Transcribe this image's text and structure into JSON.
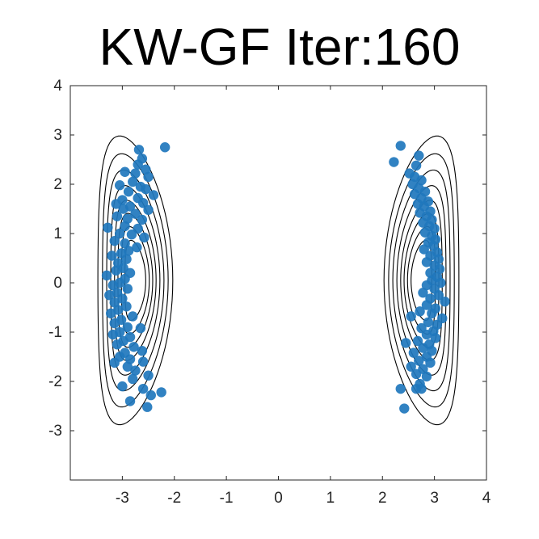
{
  "chart_data": {
    "type": "scatter",
    "title": "KW-GF Iter:160",
    "xlabel": "",
    "ylabel": "",
    "xlim": [
      -4,
      4
    ],
    "ylim": [
      -4,
      4
    ],
    "xticks": [
      -3,
      -2,
      -1,
      0,
      1,
      2,
      3,
      4
    ],
    "yticks": [
      -3,
      -2,
      -1,
      0,
      1,
      2,
      3,
      4
    ],
    "grid": false,
    "marker_color": "#1f77bd",
    "contour_color": "#000000",
    "contours": {
      "levels": [
        0.35,
        0.5,
        0.62,
        0.72,
        0.8,
        0.86,
        0.91,
        0.95
      ],
      "clusters": [
        {
          "cx": -2.75,
          "cy": 0.05,
          "ry": 2.93,
          "rx_outer": 0.72,
          "bend": -0.3
        },
        {
          "cx": 2.75,
          "cy": 0.05,
          "ry": 2.93,
          "rx_outer": 0.72,
          "bend": 0.3
        }
      ]
    },
    "series": [
      {
        "points": [
          [
            -2.18,
            2.75
          ],
          [
            -2.68,
            2.7
          ],
          [
            -2.62,
            2.52
          ],
          [
            -2.7,
            2.4
          ],
          [
            -2.55,
            2.3
          ],
          [
            -2.95,
            2.25
          ],
          [
            -2.75,
            2.22
          ],
          [
            -2.5,
            2.15
          ],
          [
            -2.8,
            2.05
          ],
          [
            -2.65,
            1.95
          ],
          [
            -3.05,
            1.98
          ],
          [
            -2.55,
            1.9
          ],
          [
            -2.88,
            1.85
          ],
          [
            -2.4,
            1.78
          ],
          [
            -2.7,
            1.72
          ],
          [
            -3.0,
            1.68
          ],
          [
            -3.12,
            1.6
          ],
          [
            -2.6,
            1.62
          ],
          [
            -2.85,
            1.55
          ],
          [
            -2.98,
            1.5
          ],
          [
            -2.5,
            1.48
          ],
          [
            -2.75,
            1.4
          ],
          [
            -3.1,
            1.35
          ],
          [
            -2.9,
            1.3
          ],
          [
            -2.62,
            1.28
          ],
          [
            -3.28,
            1.12
          ],
          [
            -2.95,
            1.15
          ],
          [
            -2.7,
            1.1
          ],
          [
            -3.05,
            1.0
          ],
          [
            -2.82,
            0.98
          ],
          [
            -2.58,
            0.92
          ],
          [
            -3.15,
            0.85
          ],
          [
            -2.95,
            0.8
          ],
          [
            -2.72,
            0.72
          ],
          [
            -2.88,
            0.65
          ],
          [
            -3.02,
            0.6
          ],
          [
            -3.2,
            0.55
          ],
          [
            -2.92,
            0.48
          ],
          [
            -3.08,
            0.4
          ],
          [
            -2.98,
            0.3
          ],
          [
            -3.12,
            0.25
          ],
          [
            -2.85,
            0.2
          ],
          [
            -3.3,
            0.15
          ],
          [
            -2.95,
            0.08
          ],
          [
            -3.05,
            0.0
          ],
          [
            -3.18,
            -0.05
          ],
          [
            -2.9,
            -0.12
          ],
          [
            -3.1,
            -0.2
          ],
          [
            -3.25,
            -0.25
          ],
          [
            -3.0,
            -0.32
          ],
          [
            -3.15,
            -0.4
          ],
          [
            -2.92,
            -0.48
          ],
          [
            -3.08,
            -0.55
          ],
          [
            -3.22,
            -0.62
          ],
          [
            -2.8,
            -0.68
          ],
          [
            -3.02,
            -0.75
          ],
          [
            -3.15,
            -0.82
          ],
          [
            -2.9,
            -0.9
          ],
          [
            -2.65,
            -0.92
          ],
          [
            -3.05,
            -1.0
          ],
          [
            -3.18,
            -1.05
          ],
          [
            -2.85,
            -1.1
          ],
          [
            -2.98,
            -1.18
          ],
          [
            -3.1,
            -1.25
          ],
          [
            -2.78,
            -1.3
          ],
          [
            -2.62,
            -1.38
          ],
          [
            -2.95,
            -1.42
          ],
          [
            -3.05,
            -1.5
          ],
          [
            -2.85,
            -1.55
          ],
          [
            -2.6,
            -1.6
          ],
          [
            -3.15,
            -1.62
          ],
          [
            -2.9,
            -1.7
          ],
          [
            -2.75,
            -1.78
          ],
          [
            -2.5,
            -1.88
          ],
          [
            -2.8,
            -1.95
          ],
          [
            -3.0,
            -2.1
          ],
          [
            -2.6,
            -2.15
          ],
          [
            -2.25,
            -2.22
          ],
          [
            -2.45,
            -2.28
          ],
          [
            -2.85,
            -2.4
          ],
          [
            -2.52,
            -2.52
          ]
        ]
      },
      {
        "points": [
          [
            2.35,
            2.78
          ],
          [
            2.7,
            2.58
          ],
          [
            2.22,
            2.45
          ],
          [
            2.65,
            2.38
          ],
          [
            2.52,
            2.22
          ],
          [
            2.62,
            2.15
          ],
          [
            2.75,
            2.08
          ],
          [
            2.58,
            2.0
          ],
          [
            2.7,
            1.92
          ],
          [
            2.82,
            1.85
          ],
          [
            2.62,
            1.8
          ],
          [
            2.75,
            1.72
          ],
          [
            2.88,
            1.65
          ],
          [
            2.68,
            1.6
          ],
          [
            2.8,
            1.55
          ],
          [
            2.92,
            1.45
          ],
          [
            2.72,
            1.42
          ],
          [
            2.85,
            1.35
          ],
          [
            2.95,
            1.28
          ],
          [
            2.78,
            1.22
          ],
          [
            2.9,
            1.15
          ],
          [
            3.0,
            1.1
          ],
          [
            2.82,
            1.02
          ],
          [
            2.95,
            0.95
          ],
          [
            3.02,
            0.88
          ],
          [
            2.88,
            0.82
          ],
          [
            2.98,
            0.75
          ],
          [
            2.8,
            0.68
          ],
          [
            3.05,
            0.62
          ],
          [
            2.92,
            0.55
          ],
          [
            3.08,
            0.48
          ],
          [
            2.85,
            0.42
          ],
          [
            3.0,
            0.35
          ],
          [
            3.1,
            0.28
          ],
          [
            2.92,
            0.2
          ],
          [
            3.05,
            0.12
          ],
          [
            2.95,
            0.05
          ],
          [
            3.12,
            0.0
          ],
          [
            2.85,
            -0.05
          ],
          [
            3.0,
            -0.12
          ],
          [
            2.78,
            -0.2
          ],
          [
            3.08,
            -0.25
          ],
          [
            2.92,
            -0.32
          ],
          [
            3.2,
            -0.38
          ],
          [
            2.85,
            -0.45
          ],
          [
            3.02,
            -0.52
          ],
          [
            2.72,
            -0.58
          ],
          [
            2.95,
            -0.62
          ],
          [
            2.55,
            -0.68
          ],
          [
            3.15,
            -0.72
          ],
          [
            2.88,
            -0.8
          ],
          [
            3.05,
            -0.85
          ],
          [
            2.75,
            -0.92
          ],
          [
            2.98,
            -0.98
          ],
          [
            2.85,
            -1.05
          ],
          [
            3.02,
            -1.12
          ],
          [
            2.68,
            -1.18
          ],
          [
            2.9,
            -1.25
          ],
          [
            2.45,
            -1.22
          ],
          [
            2.78,
            -1.32
          ],
          [
            2.95,
            -1.38
          ],
          [
            2.6,
            -1.42
          ],
          [
            2.85,
            -1.5
          ],
          [
            2.7,
            -1.58
          ],
          [
            2.92,
            -1.62
          ],
          [
            2.55,
            -1.7
          ],
          [
            2.78,
            -1.75
          ],
          [
            2.65,
            -1.85
          ],
          [
            2.85,
            -1.9
          ],
          [
            2.72,
            -2.05
          ],
          [
            2.35,
            -2.15
          ],
          [
            2.65,
            -2.15
          ],
          [
            2.75,
            -2.15
          ],
          [
            2.42,
            -2.55
          ]
        ]
      }
    ]
  }
}
